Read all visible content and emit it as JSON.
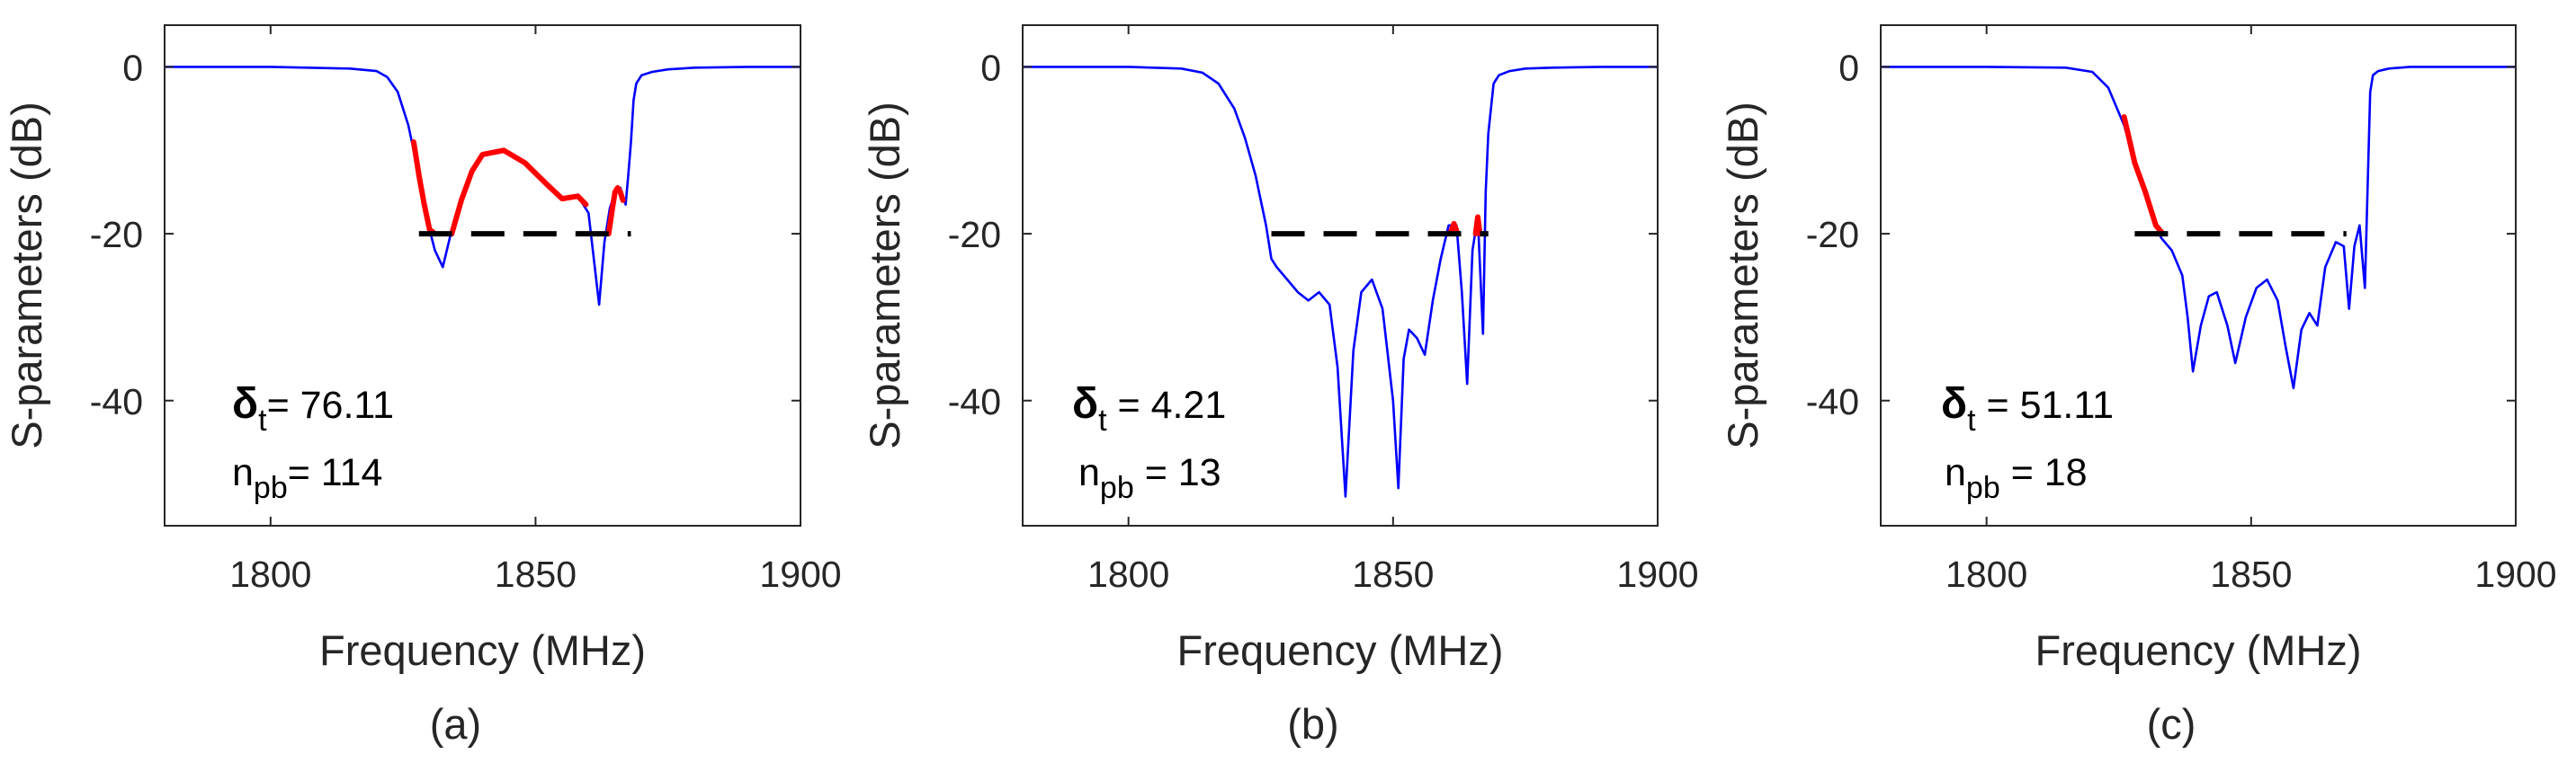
{
  "chart_data": [
    {
      "type": "line",
      "panel_label": "(a)",
      "xlabel": "Frequency (MHz)",
      "ylabel": "S-parameters (dB)",
      "xlim": [
        1780,
        1900
      ],
      "ylim": [
        -55,
        5
      ],
      "xticks": [
        "1800",
        "1850",
        "1900"
      ],
      "yticks": [
        "0",
        "-20",
        "-40"
      ],
      "threshold": {
        "x": [
          1828,
          1868
        ],
        "y": -20,
        "color": "#000000",
        "style": "dashed"
      },
      "series": [
        {
          "name": "response",
          "color": "#0000ff",
          "x": [
            1780,
            1800,
            1815,
            1820,
            1822,
            1824,
            1826,
            1828,
            1830,
            1831,
            1832.5,
            1834,
            1836,
            1838,
            1840,
            1844,
            1848,
            1852,
            1855,
            1858,
            1860,
            1861,
            1862,
            1863,
            1864,
            1865,
            1866,
            1867,
            1867.5,
            1868,
            1868.5,
            1869,
            1870,
            1872,
            1875,
            1880,
            1890,
            1900
          ],
          "y": [
            0,
            0,
            -0.2,
            -0.5,
            -1.2,
            -3,
            -7,
            -13,
            -19.5,
            -22,
            -24,
            -20,
            -16,
            -12.5,
            -10.5,
            -10,
            -11.5,
            -14,
            -15.8,
            -15.5,
            -17.5,
            -23,
            -28.5,
            -21,
            -17,
            -15,
            -14.5,
            -16.5,
            -13,
            -9,
            -4,
            -2,
            -1,
            -0.6,
            -0.3,
            -0.1,
            0,
            0
          ]
        },
        {
          "name": "violation",
          "color": "#ff0000",
          "segments": [
            {
              "x": [
                1827,
                1828,
                1829,
                1830,
                1831
              ],
              "y": [
                -9,
                -13,
                -16.5,
                -19.5,
                -20
              ]
            },
            {
              "x": [
                1834.2,
                1836,
                1838,
                1840,
                1844,
                1848,
                1852,
                1855,
                1858,
                1859.5
              ],
              "y": [
                -20,
                -16,
                -12.5,
                -10.5,
                -10,
                -11.5,
                -14,
                -15.8,
                -15.5,
                -16.5
              ]
            },
            {
              "x": [
                1863.8,
                1864.5,
                1865,
                1865.5,
                1866,
                1866.5
              ],
              "y": [
                -20,
                -17,
                -15,
                -14.5,
                -15,
                -16
              ]
            }
          ]
        }
      ],
      "annotations": [
        {
          "symbol": "δ",
          "subscript": "t",
          "text": "= 76.11"
        },
        {
          "symbol": "n",
          "subscript": "pb",
          "text": "= 114"
        }
      ]
    },
    {
      "type": "line",
      "panel_label": "(b)",
      "xlabel": "Frequency (MHz)",
      "ylabel": "S-parameters (dB)",
      "xlim": [
        1780,
        1900
      ],
      "ylim": [
        -55,
        5
      ],
      "xticks": [
        "1800",
        "1850",
        "1900"
      ],
      "yticks": [
        "0",
        "-20",
        "-40"
      ],
      "threshold": {
        "x": [
          1827,
          1868
        ],
        "y": -20,
        "color": "#000000",
        "style": "dashed"
      },
      "series": [
        {
          "name": "response",
          "color": "#0000ff",
          "x": [
            1780,
            1800,
            1810,
            1814,
            1817,
            1820,
            1822,
            1824,
            1826,
            1827,
            1828,
            1830,
            1832,
            1834,
            1836,
            1838,
            1839.5,
            1841,
            1842.5,
            1844,
            1846,
            1848,
            1850,
            1851,
            1852,
            1853,
            1854.5,
            1856,
            1857.5,
            1859,
            1860.5,
            1862,
            1863,
            1864,
            1865,
            1866,
            1867,
            1867.5,
            1868,
            1869,
            1870,
            1872,
            1875,
            1880,
            1890,
            1900
          ],
          "y": [
            0,
            0,
            -0.2,
            -0.7,
            -2,
            -5,
            -8.5,
            -13,
            -19,
            -23,
            -24,
            -25.5,
            -27,
            -28,
            -27,
            -28.5,
            -36,
            -51.5,
            -34,
            -27,
            -25.5,
            -29,
            -40,
            -50.5,
            -35,
            -31.5,
            -32.5,
            -34.5,
            -28,
            -23,
            -19,
            -19,
            -27,
            -38,
            -22,
            -18,
            -32,
            -15,
            -8,
            -2,
            -1,
            -0.5,
            -0.2,
            -0.1,
            0,
            0
          ]
        },
        {
          "name": "violation",
          "color": "#ff0000",
          "segments": [
            {
              "x": [
                1860.8,
                1861.5,
                1862.2
              ],
              "y": [
                -20,
                -18.8,
                -20
              ]
            },
            {
              "x": [
                1865.6,
                1866,
                1866.4
              ],
              "y": [
                -20,
                -18,
                -20
              ]
            }
          ]
        }
      ],
      "annotations": [
        {
          "symbol": "δ",
          "subscript": "t",
          "text": " = 4.21"
        },
        {
          "symbol": "n",
          "subscript": "pb",
          "text": " = 13"
        }
      ]
    },
    {
      "type": "line",
      "panel_label": "(c)",
      "xlabel": "Frequency (MHz)",
      "ylabel": "S-parameters (dB)",
      "xlim": [
        1780,
        1900
      ],
      "ylim": [
        -55,
        5
      ],
      "xticks": [
        "1800",
        "1850",
        "1900"
      ],
      "yticks": [
        "0",
        "-20",
        "-40"
      ],
      "threshold": {
        "x": [
          1828,
          1868
        ],
        "y": -20,
        "color": "#000000",
        "style": "dashed"
      },
      "series": [
        {
          "name": "response",
          "color": "#0000ff",
          "x": [
            1780,
            1800,
            1815,
            1820,
            1823,
            1826,
            1828,
            1830,
            1832,
            1833,
            1835,
            1837,
            1838,
            1839,
            1840.5,
            1842,
            1843.5,
            1845.5,
            1847,
            1849,
            1851,
            1853,
            1855,
            1856.5,
            1858,
            1859.5,
            1861,
            1862.5,
            1864,
            1866,
            1867.5,
            1868.5,
            1869.5,
            1870.5,
            1871.5,
            1872.5,
            1873,
            1874,
            1876,
            1880,
            1890,
            1900
          ],
          "y": [
            0,
            0,
            -0.1,
            -0.6,
            -2.5,
            -7,
            -11.5,
            -15,
            -19,
            -20.5,
            -22,
            -25,
            -30,
            -36.5,
            -31,
            -27.5,
            -27,
            -31,
            -35.5,
            -30,
            -26.5,
            -25.5,
            -28,
            -33.5,
            -38.5,
            -31.5,
            -29.5,
            -31,
            -24,
            -21,
            -21.5,
            -29,
            -21.5,
            -19,
            -26.5,
            -3,
            -1,
            -0.5,
            -0.2,
            0,
            0,
            0
          ]
        },
        {
          "name": "violation",
          "color": "#ff0000",
          "segments": [
            {
              "x": [
                1826,
                1828,
                1830,
                1832,
                1833.3
              ],
              "y": [
                -6,
                -11.5,
                -15,
                -19,
                -20
              ]
            }
          ]
        }
      ],
      "annotations": [
        {
          "symbol": "δ",
          "subscript": "t",
          "text": " = 51.11"
        },
        {
          "symbol": "n",
          "subscript": "pb",
          "text": " = 18"
        }
      ]
    }
  ]
}
